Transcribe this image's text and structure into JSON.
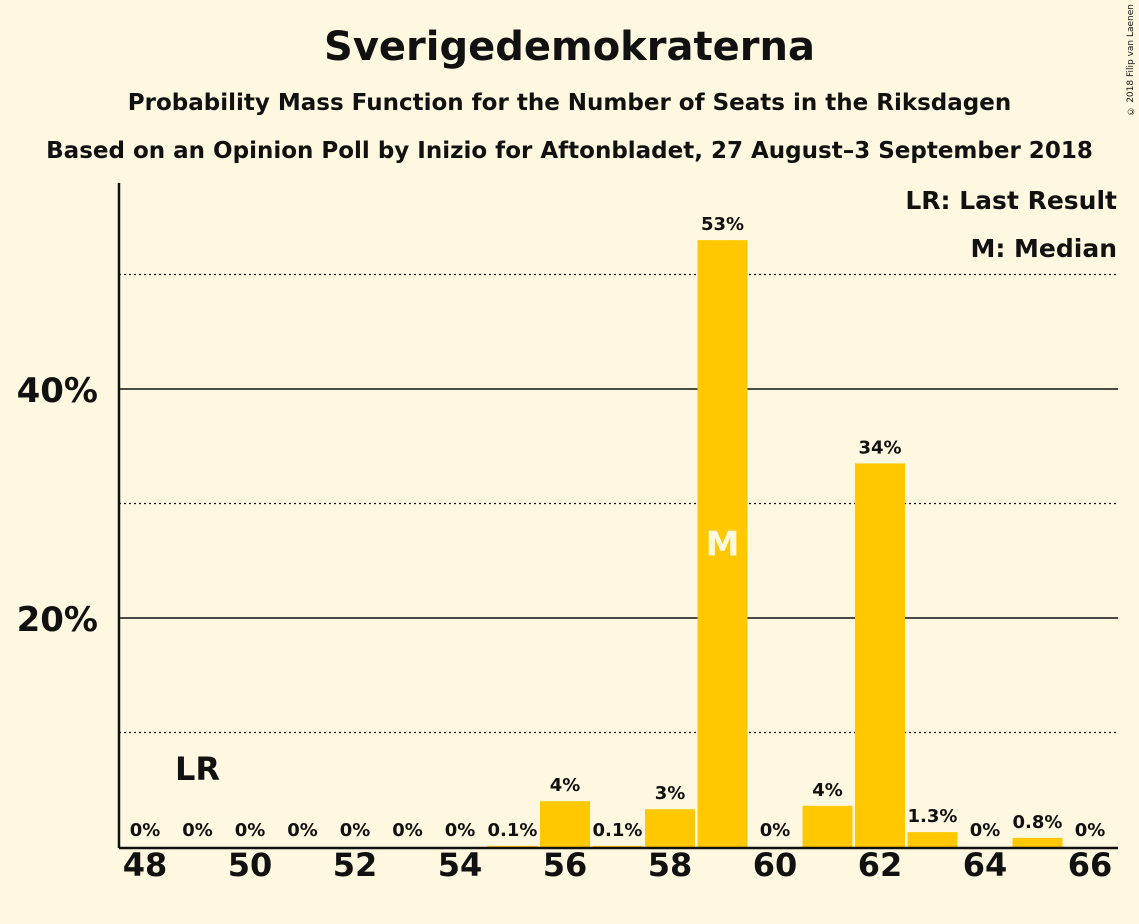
{
  "header": {
    "title": "Sverigedemokraterna",
    "subtitle": "Probability Mass Function for the Number of Seats in the Riksdagen",
    "subtitle2": "Based on an Opinion Poll by Inizio for Aftonbladet, 27 August–3 September 2018",
    "copyright": "© 2018 Filip van Laenen"
  },
  "colors": {
    "background": "#fff8e1",
    "bar": "#ffc800",
    "text": "#111111"
  },
  "chart_data": {
    "type": "bar",
    "categories": [
      48,
      49,
      50,
      51,
      52,
      53,
      54,
      55,
      56,
      57,
      58,
      59,
      60,
      61,
      62,
      63,
      64,
      65,
      66
    ],
    "values": [
      0,
      0,
      0,
      0,
      0,
      0,
      0,
      0.1,
      4,
      0.1,
      3.3,
      53,
      0,
      3.6,
      33.5,
      1.3,
      0,
      0.8,
      0
    ],
    "value_labels": [
      "0%",
      "0%",
      "0%",
      "0%",
      "0%",
      "0%",
      "0%",
      "0.1%",
      "4%",
      "0.1%",
      "3%",
      "53%",
      "0%",
      "4%",
      "34%",
      "1.3%",
      "0%",
      "0.8%",
      "0%"
    ],
    "x_tick_labels": [
      "48",
      "50",
      "52",
      "54",
      "56",
      "58",
      "60",
      "62",
      "64",
      "66"
    ],
    "x_tick_values": [
      48,
      50,
      52,
      54,
      56,
      58,
      60,
      62,
      64,
      66
    ],
    "y_tick_labels": [
      "20%",
      "40%"
    ],
    "y_tick_values": [
      20,
      40
    ],
    "y_minor_gridlines": [
      10,
      30,
      50
    ],
    "ylim": [
      0,
      58
    ],
    "last_result": {
      "seat": 49,
      "label": "LR"
    },
    "median": {
      "seat": 59,
      "label": "M"
    },
    "legend": [
      "LR: Last Result",
      "M: Median"
    ],
    "legend_position": "top-right",
    "grid": true
  }
}
